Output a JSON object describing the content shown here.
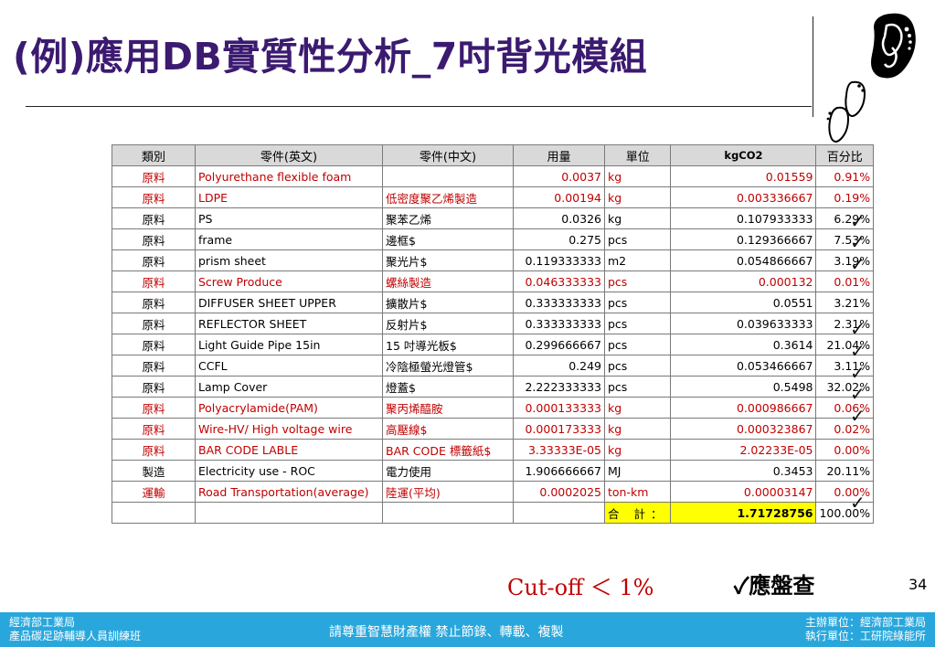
{
  "title": "(例)應用DB實質性分析_7吋背光模組",
  "table": {
    "headers": [
      "類別",
      "零件(英文)",
      "零件(中文)",
      "用量",
      "單位",
      "kgCO2",
      "百分比"
    ],
    "rows": [
      {
        "cat": "原料",
        "en": "Polyurethane flexible foam",
        "zh": "",
        "qty": "0.0037",
        "unit": "kg",
        "co2": "0.01559",
        "pct": "0.91%",
        "red": true,
        "check": false
      },
      {
        "cat": "原料",
        "en": "LDPE",
        "zh": "低密度聚乙烯製造",
        "qty": "0.00194",
        "unit": "kg",
        "co2": "0.003336667",
        "pct": "0.19%",
        "red": true,
        "check": true
      },
      {
        "cat": "原料",
        "en": "PS",
        "zh": "聚苯乙烯",
        "qty": "0.0326",
        "unit": "kg",
        "co2": "0.107933333",
        "pct": "6.29%",
        "red": false,
        "check": true
      },
      {
        "cat": "原料",
        "en": "frame",
        "zh": "邊框$",
        "qty": "0.275",
        "unit": "pcs",
        "co2": "0.129366667",
        "pct": "7.53%",
        "red": false,
        "check": true
      },
      {
        "cat": "原料",
        "en": "prism sheet",
        "zh": "聚光片$",
        "qty": "0.119333333",
        "unit": "m2",
        "co2": "0.054866667",
        "pct": "3.19%",
        "red": false,
        "check": false
      },
      {
        "cat": "原料",
        "en": "Screw Produce",
        "zh": "螺絲製造",
        "qty": "0.046333333",
        "unit": "pcs",
        "co2": "0.000132",
        "pct": "0.01%",
        "red": true,
        "check": false
      },
      {
        "cat": "原料",
        "en": "DIFFUSER SHEET UPPER",
        "zh": "擴散片$",
        "qty": "0.333333333",
        "unit": "pcs",
        "co2": "0.0551",
        "pct": "3.21%",
        "red": false,
        "check": true
      },
      {
        "cat": "原料",
        "en": "REFLECTOR SHEET",
        "zh": "反射片$",
        "qty": "0.333333333",
        "unit": "pcs",
        "co2": "0.039633333",
        "pct": "2.31%",
        "red": false,
        "check": true
      },
      {
        "cat": "原料",
        "en": "Light Guide Pipe 15in",
        "zh": "15 吋導光板$",
        "qty": "0.299666667",
        "unit": "pcs",
        "co2": "0.3614",
        "pct": "21.04%",
        "red": false,
        "check": true
      },
      {
        "cat": "原料",
        "en": "CCFL",
        "zh": "冷陰極螢光燈管$",
        "qty": "0.249",
        "unit": "pcs",
        "co2": "0.053466667",
        "pct": "3.11%",
        "red": false,
        "check": true
      },
      {
        "cat": "原料",
        "en": "Lamp Cover",
        "zh": "燈蓋$",
        "qty": "2.222333333",
        "unit": "pcs",
        "co2": "0.5498",
        "pct": "32.02%",
        "red": false,
        "check": true
      },
      {
        "cat": "原料",
        "en": "Polyacrylamide(PAM)",
        "zh": "聚丙烯醯胺",
        "qty": "0.000133333",
        "unit": "kg",
        "co2": "0.000986667",
        "pct": "0.06%",
        "red": true,
        "check": false
      },
      {
        "cat": "原料",
        "en": "Wire-HV/ High voltage wire",
        "zh": "高壓線$",
        "qty": "0.000173333",
        "unit": "kg",
        "co2": "0.000323867",
        "pct": "0.02%",
        "red": true,
        "check": false
      },
      {
        "cat": "原料",
        "en": "BAR CODE LABLE",
        "zh": "BAR CODE  標籤紙$",
        "qty": "3.33333E-05",
        "unit": "kg",
        "co2": "2.02233E-05",
        "pct": "0.00%",
        "red": true,
        "check": false
      },
      {
        "cat": "製造",
        "en": "Electricity use - ROC",
        "zh": "電力使用",
        "qty": "1.906666667",
        "unit": "MJ",
        "co2": "0.3453",
        "pct": "20.11%",
        "red": false,
        "check": true
      },
      {
        "cat": "運輸",
        "en": "Road Transportation(average)",
        "zh": "陸運(平均)",
        "qty": "0.0002025",
        "unit": "ton-km",
        "co2": "0.00003147",
        "pct": "0.00%",
        "red": true,
        "check": false
      }
    ],
    "total_label": "合 計：",
    "total_value": "1.71728756",
    "total_pct": "100.00%"
  },
  "check_mark": "✓",
  "cutoff_text": "Cut-off ＜ 1%",
  "must_check_text": "✓應盤查",
  "page_number": "34",
  "footer": {
    "left_line1": "經濟部工業局",
    "left_line2": "產品碳足跡輔導人員訓練班",
    "center": "請尊重智慧財產權 禁止節錄、轉載、複製",
    "right_line1": "主辦單位：經濟部工業局",
    "right_line2": "執行單位：工研院綠能所"
  }
}
